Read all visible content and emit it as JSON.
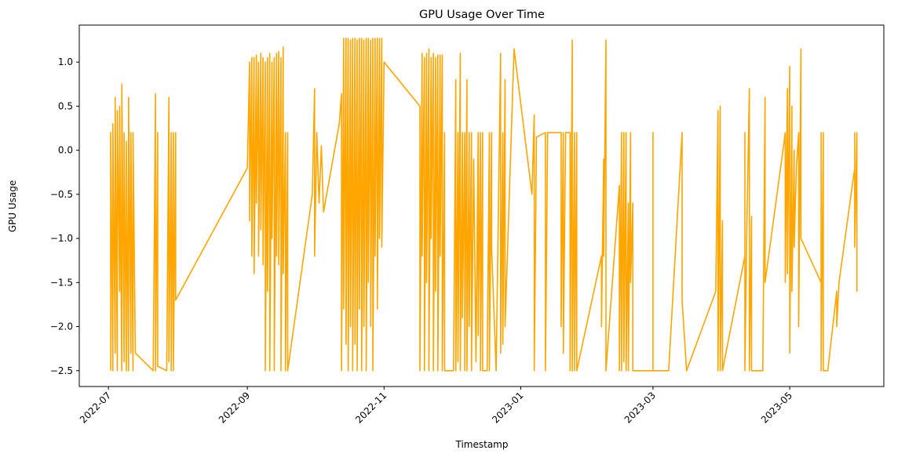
{
  "chart_data": {
    "type": "line",
    "title": "GPU Usage Over Time",
    "xlabel": "Timestamp",
    "ylabel": "GPU Usage",
    "x_type": "date",
    "xlim": [
      "2022-06-18",
      "2023-06-12"
    ],
    "ylim": [
      -2.68,
      1.42
    ],
    "x_ticks": [
      "2022-07",
      "2022-09",
      "2022-11",
      "2023-01",
      "2023-03",
      "2023-05"
    ],
    "x_tick_dates": [
      "2022-07-01",
      "2022-09-01",
      "2022-11-01",
      "2023-01-01",
      "2023-03-01",
      "2023-05-01"
    ],
    "y_ticks": [
      1.0,
      0.5,
      0.0,
      -0.5,
      -1.0,
      -1.5,
      -2.0,
      -2.5
    ],
    "y_tick_labels": [
      "1.0",
      "0.5",
      "0.0",
      "−0.5",
      "−1.0",
      "−1.5",
      "−2.0",
      "−2.5"
    ],
    "grid": false,
    "legend": false,
    "series": [
      {
        "color": "#ffa500",
        "points": [
          [
            "2022-07-02",
            -2.5
          ],
          [
            "2022-07-02",
            0.2
          ],
          [
            "2022-07-03",
            -2.5
          ],
          [
            "2022-07-03",
            0.3
          ],
          [
            "2022-07-04",
            -2.3
          ],
          [
            "2022-07-04",
            0.6
          ],
          [
            "2022-07-05",
            -2.5
          ],
          [
            "2022-07-05",
            0.45
          ],
          [
            "2022-07-06",
            -1.6
          ],
          [
            "2022-07-06",
            0.5
          ],
          [
            "2022-07-07",
            -2.5
          ],
          [
            "2022-07-07",
            0.75
          ],
          [
            "2022-07-08",
            -2.4
          ],
          [
            "2022-07-08",
            0.2
          ],
          [
            "2022-07-09",
            -2.5
          ],
          [
            "2022-07-09",
            0.1
          ],
          [
            "2022-07-10",
            -2.5
          ],
          [
            "2022-07-10",
            0.6
          ],
          [
            "2022-07-11",
            -2.3
          ],
          [
            "2022-07-11",
            0.2
          ],
          [
            "2022-07-12",
            -2.5
          ],
          [
            "2022-07-12",
            0.2
          ],
          [
            "2022-07-13",
            -2.3
          ],
          [
            "2022-07-21",
            -2.5
          ],
          [
            "2022-07-22",
            0.64
          ],
          [
            "2022-07-22",
            -2.5
          ],
          [
            "2022-07-23",
            0.2
          ],
          [
            "2022-07-23",
            -2.45
          ],
          [
            "2022-07-27",
            -2.5
          ],
          [
            "2022-07-28",
            0.6
          ],
          [
            "2022-07-28",
            -2.4
          ],
          [
            "2022-07-29",
            0.2
          ],
          [
            "2022-07-29",
            -2.5
          ],
          [
            "2022-07-30",
            0.2
          ],
          [
            "2022-07-30",
            -2.5
          ],
          [
            "2022-07-31",
            0.2
          ],
          [
            "2022-07-31",
            -1.7
          ],
          [
            "2022-09-01",
            -0.2
          ],
          [
            "2022-09-02",
            1.0
          ],
          [
            "2022-09-02",
            -0.8
          ],
          [
            "2022-09-03",
            1.05
          ],
          [
            "2022-09-03",
            -1.2
          ],
          [
            "2022-09-04",
            1.05
          ],
          [
            "2022-09-04",
            -1.4
          ],
          [
            "2022-09-05",
            1.08
          ],
          [
            "2022-09-05",
            -0.6
          ],
          [
            "2022-09-06",
            1.0
          ],
          [
            "2022-09-06",
            -1.2
          ],
          [
            "2022-09-07",
            1.1
          ],
          [
            "2022-09-07",
            -0.9
          ],
          [
            "2022-09-08",
            1.05
          ],
          [
            "2022-09-08",
            -1.3
          ],
          [
            "2022-09-09",
            1.0
          ],
          [
            "2022-09-09",
            -2.5
          ],
          [
            "2022-09-10",
            1.05
          ],
          [
            "2022-09-10",
            -1.6
          ],
          [
            "2022-09-11",
            1.1
          ],
          [
            "2022-09-11",
            -2.5
          ],
          [
            "2022-09-12",
            1.0
          ],
          [
            "2022-09-12",
            -1.0
          ],
          [
            "2022-09-13",
            1.05
          ],
          [
            "2022-09-13",
            -2.5
          ],
          [
            "2022-09-14",
            1.1
          ],
          [
            "2022-09-14",
            -1.2
          ],
          [
            "2022-09-15",
            1.12
          ],
          [
            "2022-09-15",
            -1.3
          ],
          [
            "2022-09-16",
            1.05
          ],
          [
            "2022-09-16",
            -2.5
          ],
          [
            "2022-09-17",
            1.17
          ],
          [
            "2022-09-17",
            -1.4
          ],
          [
            "2022-09-18",
            0.2
          ],
          [
            "2022-09-18",
            -2.5
          ],
          [
            "2022-09-19",
            0.2
          ],
          [
            "2022-09-19",
            -2.5
          ],
          [
            "2022-09-30",
            -0.5
          ],
          [
            "2022-10-01",
            0.7
          ],
          [
            "2022-10-01",
            -1.2
          ],
          [
            "2022-10-02",
            0.2
          ],
          [
            "2022-10-03",
            -0.6
          ],
          [
            "2022-10-04",
            0.05
          ],
          [
            "2022-10-05",
            -0.7
          ],
          [
            "2022-10-12",
            0.3
          ],
          [
            "2022-10-13",
            0.64
          ],
          [
            "2022-10-13",
            -2.5
          ],
          [
            "2022-10-14",
            1.27
          ],
          [
            "2022-10-14",
            -1.8
          ],
          [
            "2022-10-15",
            1.27
          ],
          [
            "2022-10-15",
            -2.2
          ],
          [
            "2022-10-16",
            1.27
          ],
          [
            "2022-10-16",
            -2.5
          ],
          [
            "2022-10-17",
            1.25
          ],
          [
            "2022-10-17",
            -2.0
          ],
          [
            "2022-10-18",
            1.27
          ],
          [
            "2022-10-18",
            -2.5
          ],
          [
            "2022-10-19",
            1.27
          ],
          [
            "2022-10-19",
            -2.2
          ],
          [
            "2022-10-20",
            1.25
          ],
          [
            "2022-10-20",
            -2.5
          ],
          [
            "2022-10-21",
            1.27
          ],
          [
            "2022-10-21",
            -1.8
          ],
          [
            "2022-10-22",
            1.27
          ],
          [
            "2022-10-22",
            -2.5
          ],
          [
            "2022-10-23",
            1.25
          ],
          [
            "2022-10-23",
            -2.0
          ],
          [
            "2022-10-24",
            1.27
          ],
          [
            "2022-10-24",
            -2.5
          ],
          [
            "2022-10-25",
            1.27
          ],
          [
            "2022-10-25",
            -1.5
          ],
          [
            "2022-10-26",
            1.25
          ],
          [
            "2022-10-26",
            -2.0
          ],
          [
            "2022-10-27",
            1.27
          ],
          [
            "2022-10-27",
            -2.5
          ],
          [
            "2022-10-28",
            1.27
          ],
          [
            "2022-10-28",
            -1.2
          ],
          [
            "2022-10-29",
            1.27
          ],
          [
            "2022-10-29",
            -1.8
          ],
          [
            "2022-10-30",
            1.27
          ],
          [
            "2022-10-30",
            -1.0
          ],
          [
            "2022-10-31",
            1.27
          ],
          [
            "2022-10-31",
            -1.1
          ],
          [
            "2022-11-01",
            1.0
          ],
          [
            "2022-11-17",
            0.5
          ],
          [
            "2022-11-17",
            -2.5
          ],
          [
            "2022-11-18",
            1.1
          ],
          [
            "2022-11-18",
            -1.2
          ],
          [
            "2022-11-19",
            1.05
          ],
          [
            "2022-11-19",
            -2.5
          ],
          [
            "2022-11-20",
            1.1
          ],
          [
            "2022-11-20",
            -1.5
          ],
          [
            "2022-11-21",
            1.15
          ],
          [
            "2022-11-21",
            -2.5
          ],
          [
            "2022-11-22",
            1.05
          ],
          [
            "2022-11-22",
            -1.0
          ],
          [
            "2022-11-23",
            1.1
          ],
          [
            "2022-11-23",
            -2.5
          ],
          [
            "2022-11-24",
            1.05
          ],
          [
            "2022-11-24",
            -1.6
          ],
          [
            "2022-11-25",
            1.08
          ],
          [
            "2022-11-25",
            -2.5
          ],
          [
            "2022-11-26",
            1.08
          ],
          [
            "2022-11-26",
            -1.2
          ],
          [
            "2022-11-27",
            1.08
          ],
          [
            "2022-11-27",
            -2.5
          ],
          [
            "2022-11-28",
            0.2
          ],
          [
            "2022-11-28",
            -2.5
          ],
          [
            "2022-11-30",
            -2.5
          ],
          [
            "2022-12-02",
            -2.5
          ],
          [
            "2022-12-03",
            0.8
          ],
          [
            "2022-12-03",
            -2.5
          ],
          [
            "2022-12-04",
            0.2
          ],
          [
            "2022-12-04",
            -2.4
          ],
          [
            "2022-12-05",
            1.1
          ],
          [
            "2022-12-05",
            -2.5
          ],
          [
            "2022-12-06",
            0.2
          ],
          [
            "2022-12-06",
            -1.9
          ],
          [
            "2022-12-07",
            0.2
          ],
          [
            "2022-12-07",
            -2.5
          ],
          [
            "2022-12-08",
            0.8
          ],
          [
            "2022-12-08",
            -2.5
          ],
          [
            "2022-12-09",
            0.2
          ],
          [
            "2022-12-09",
            -2.0
          ],
          [
            "2022-12-10",
            0.2
          ],
          [
            "2022-12-10",
            -2.5
          ],
          [
            "2022-12-11",
            -0.1
          ],
          [
            "2022-12-12",
            -2.4
          ],
          [
            "2022-12-13",
            0.2
          ],
          [
            "2022-12-13",
            -2.1
          ],
          [
            "2022-12-14",
            0.2
          ],
          [
            "2022-12-14",
            -2.5
          ],
          [
            "2022-12-15",
            0.2
          ],
          [
            "2022-12-15",
            -2.5
          ],
          [
            "2022-12-17",
            -2.5
          ],
          [
            "2022-12-18",
            0.2
          ],
          [
            "2022-12-18",
            -2.5
          ],
          [
            "2022-12-19",
            0.2
          ],
          [
            "2022-12-19",
            -1.1
          ],
          [
            "2022-12-21",
            -2.5
          ],
          [
            "2022-12-23",
            1.1
          ],
          [
            "2022-12-23",
            -2.3
          ],
          [
            "2022-12-24",
            0.2
          ],
          [
            "2022-12-24",
            -2.2
          ],
          [
            "2022-12-25",
            0.8
          ],
          [
            "2022-12-25",
            -2.0
          ],
          [
            "2022-12-29",
            1.15
          ],
          [
            "2023-01-06",
            -0.5
          ],
          [
            "2023-01-07",
            0.4
          ],
          [
            "2023-01-07",
            -2.5
          ],
          [
            "2023-01-08",
            0.15
          ],
          [
            "2023-01-12",
            0.2
          ],
          [
            "2023-01-12",
            -2.5
          ],
          [
            "2023-01-13",
            0.2
          ],
          [
            "2023-01-19",
            0.2
          ],
          [
            "2023-01-19",
            -2.0
          ],
          [
            "2023-01-20",
            0.2
          ],
          [
            "2023-01-20",
            -2.3
          ],
          [
            "2023-01-21",
            0.2
          ],
          [
            "2023-01-23",
            0.2
          ],
          [
            "2023-01-23",
            -2.5
          ],
          [
            "2023-01-24",
            1.25
          ],
          [
            "2023-01-24",
            -2.5
          ],
          [
            "2023-01-25",
            0.2
          ],
          [
            "2023-01-25",
            -2.5
          ],
          [
            "2023-01-26",
            0.2
          ],
          [
            "2023-01-26",
            -2.5
          ],
          [
            "2023-02-06",
            -1.2
          ],
          [
            "2023-02-06",
            -2.0
          ],
          [
            "2023-02-07",
            -0.1
          ],
          [
            "2023-02-07",
            -1.2
          ],
          [
            "2023-02-08",
            1.25
          ],
          [
            "2023-02-08",
            -2.5
          ],
          [
            "2023-02-14",
            -0.4
          ],
          [
            "2023-02-14",
            -2.5
          ],
          [
            "2023-02-15",
            0.2
          ],
          [
            "2023-02-15",
            -2.5
          ],
          [
            "2023-02-16",
            0.2
          ],
          [
            "2023-02-16",
            -2.4
          ],
          [
            "2023-02-17",
            0.2
          ],
          [
            "2023-02-17",
            -2.5
          ],
          [
            "2023-02-18",
            -0.6
          ],
          [
            "2023-02-18",
            -2.5
          ],
          [
            "2023-02-19",
            0.2
          ],
          [
            "2023-02-19",
            -1.5
          ],
          [
            "2023-02-20",
            -0.6
          ],
          [
            "2023-02-20",
            -2.5
          ],
          [
            "2023-03-01",
            -2.5
          ],
          [
            "2023-03-01",
            0.2
          ],
          [
            "2023-03-01",
            -1.5
          ],
          [
            "2023-03-01",
            -2.5
          ],
          [
            "2023-03-08",
            -2.5
          ],
          [
            "2023-03-14",
            0.2
          ],
          [
            "2023-03-14",
            -1.7
          ],
          [
            "2023-03-16",
            -2.5
          ],
          [
            "2023-03-29",
            -1.6
          ],
          [
            "2023-03-30",
            0.45
          ],
          [
            "2023-03-30",
            -2.5
          ],
          [
            "2023-03-31",
            0.5
          ],
          [
            "2023-03-31",
            -2.5
          ],
          [
            "2023-04-01",
            -0.8
          ],
          [
            "2023-04-01",
            -2.5
          ],
          [
            "2023-04-11",
            -1.2
          ],
          [
            "2023-04-11",
            0.2
          ],
          [
            "2023-04-11",
            -2.5
          ],
          [
            "2023-04-12",
            -0.7
          ],
          [
            "2023-04-13",
            0.7
          ],
          [
            "2023-04-13",
            -2.5
          ],
          [
            "2023-04-14",
            -0.75
          ],
          [
            "2023-04-14",
            -2.5
          ],
          [
            "2023-04-19",
            -2.5
          ],
          [
            "2023-04-20",
            0.6
          ],
          [
            "2023-04-20",
            -1.5
          ],
          [
            "2023-04-28",
            0.0
          ],
          [
            "2023-04-29",
            0.2
          ],
          [
            "2023-04-29",
            -1.5
          ],
          [
            "2023-04-30",
            0.7
          ],
          [
            "2023-04-30",
            -1.4
          ],
          [
            "2023-05-01",
            0.95
          ],
          [
            "2023-05-01",
            -2.3
          ],
          [
            "2023-05-02",
            0.5
          ],
          [
            "2023-05-02",
            -1.6
          ],
          [
            "2023-05-03",
            0.0
          ],
          [
            "2023-05-03",
            -1.1
          ],
          [
            "2023-05-04",
            -0.2
          ],
          [
            "2023-05-05",
            0.2
          ],
          [
            "2023-05-05",
            -2.0
          ],
          [
            "2023-05-06",
            1.15
          ],
          [
            "2023-05-06",
            -1.0
          ],
          [
            "2023-05-15",
            -1.5
          ],
          [
            "2023-05-15",
            0.2
          ],
          [
            "2023-05-15",
            -2.5
          ],
          [
            "2023-05-16",
            0.2
          ],
          [
            "2023-05-16",
            -2.5
          ],
          [
            "2023-05-18",
            -2.5
          ],
          [
            "2023-05-22",
            -1.6
          ],
          [
            "2023-05-22",
            -2.0
          ],
          [
            "2023-05-23",
            -1.5
          ],
          [
            "2023-05-30",
            -0.2
          ],
          [
            "2023-05-30",
            0.2
          ],
          [
            "2023-05-30",
            -1.1
          ],
          [
            "2023-05-31",
            0.2
          ],
          [
            "2023-05-31",
            -1.6
          ],
          [
            "2023-05-31",
            0.2
          ]
        ]
      }
    ]
  }
}
